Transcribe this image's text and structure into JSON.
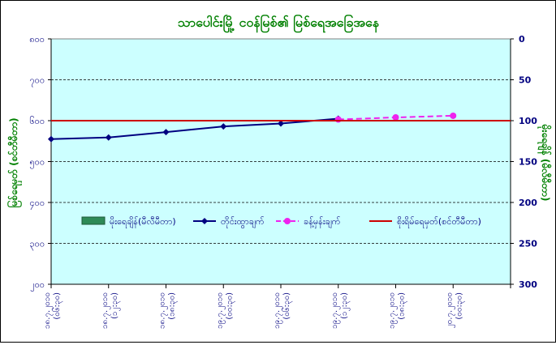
{
  "chart_data": {
    "type": "line",
    "title": "သာပေါင်းမြို့ ငဝန်မြစ်၏ မြစ်ရေအခြေအနေ",
    "ylabel_left": "မြစ်ရေမှတ် (စင်တီမီတာ)",
    "ylabel_right": "မိုးရေချိန် (မီလီမီတာ)",
    "left_axis": {
      "min": 200,
      "max": 800,
      "step": 100,
      "ticks": [
        "၈၀၀",
        "၇၀၀",
        "၆၀၀",
        "၅၀၀",
        "၄၀၀",
        "၃၀၀",
        "၂၀၀"
      ]
    },
    "right_axis": {
      "min": 0,
      "max": 300,
      "step": 50,
      "reversed": true,
      "ticks": [
        "0",
        "50",
        "100",
        "150",
        "200",
        "250",
        "300"
      ]
    },
    "categories": [
      "၁၈.၇.၂၀၁၀\n(၀၆:၃၀)",
      "၁၈.၇.၂၀၁၀\n(၁၂:၃၀)",
      "၁၈.၇.၂၀၁၀\n(၁၈:၃၀)",
      "၁၉.၇.၂၀၁၀\n(၀၀:၃၀)",
      "၁၉.၇.၂၀၁၀\n(၀၆:၃၀)",
      "၁၉.၇.၂၀၁၀\n(၁၂:၃၀)",
      "၁၉.၇.၂၀၁၀\n(၁၈:၃၀)",
      "၂၀.၇.၂၀၁၀\n(၀၀:၃၀)"
    ],
    "series": [
      {
        "name": "မိုးရေချိန်(မီလီမီတာ)",
        "kind": "bar",
        "axis": "right",
        "color": "#2e8b57",
        "values": [
          0,
          0,
          0,
          0,
          0,
          0,
          0,
          0
        ]
      },
      {
        "name": "တိုင်းထွာချက်",
        "kind": "line",
        "axis": "left",
        "color": "#000080",
        "marker": "diamond",
        "values": [
          555,
          559,
          572,
          586,
          593,
          605,
          null,
          null
        ]
      },
      {
        "name": "ခန့်မှန်းချက်",
        "kind": "line",
        "axis": "left",
        "color": "#ee22ee",
        "marker": "circle",
        "dash": true,
        "values": [
          null,
          null,
          null,
          null,
          null,
          603,
          608,
          612
        ]
      },
      {
        "name": "စိုးရိမ်ရေမှတ်(စင်တီမီတာ)",
        "kind": "hline",
        "axis": "left",
        "color": "#cc0000",
        "value": 600
      }
    ],
    "grid": true,
    "legend_position": "middle",
    "colors": {
      "plot_bg": "#ccffff",
      "axis_text": "#000080",
      "title": "#008000"
    }
  }
}
